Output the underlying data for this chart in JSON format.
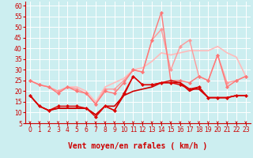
{
  "xlabel": "Vent moyen/en rafales ( km/h )",
  "background_color": "#cceef0",
  "grid_color": "#ffffff",
  "xlim": [
    -0.5,
    23.5
  ],
  "ylim": [
    5,
    62
  ],
  "yticks": [
    5,
    10,
    15,
    20,
    25,
    30,
    35,
    40,
    45,
    50,
    55,
    60
  ],
  "xticks": [
    0,
    1,
    2,
    3,
    4,
    5,
    6,
    7,
    8,
    9,
    10,
    11,
    12,
    13,
    14,
    15,
    16,
    17,
    18,
    19,
    20,
    21,
    22,
    23
  ],
  "series": [
    {
      "x": [
        0,
        1,
        2,
        3,
        4,
        5,
        6,
        7,
        8,
        9,
        10,
        11,
        12,
        13,
        14,
        15,
        16,
        17,
        18,
        19,
        20,
        21,
        22,
        23
      ],
      "y": [
        25,
        23,
        22,
        20,
        22,
        22,
        20,
        15,
        22,
        24,
        26,
        30,
        31,
        34,
        38,
        37,
        38,
        39,
        39,
        39,
        41,
        38,
        36,
        27
      ],
      "color": "#ffbbbb",
      "linewidth": 1.2,
      "marker": null,
      "markersize": 0,
      "zorder": 2
    },
    {
      "x": [
        0,
        1,
        2,
        3,
        4,
        5,
        6,
        7,
        8,
        9,
        10,
        11,
        12,
        13,
        14,
        15,
        16,
        17,
        18,
        19,
        20,
        21,
        22,
        23
      ],
      "y": [
        25,
        23,
        22,
        20,
        22,
        21,
        19,
        14,
        21,
        21,
        25,
        30,
        29,
        44,
        49,
        30,
        41,
        44,
        27,
        25,
        37,
        24,
        25,
        27
      ],
      "color": "#ff9999",
      "linewidth": 1.0,
      "marker": "D",
      "markersize": 2.2,
      "zorder": 3
    },
    {
      "x": [
        0,
        1,
        2,
        3,
        4,
        5,
        6,
        7,
        8,
        9,
        10,
        11,
        12,
        13,
        14,
        15,
        16,
        17,
        18,
        19,
        20,
        21,
        22,
        23
      ],
      "y": [
        25,
        23,
        22,
        19,
        22,
        20,
        19,
        14,
        20,
        19,
        24,
        30,
        29,
        44,
        57,
        25,
        25,
        24,
        27,
        25,
        37,
        22,
        25,
        27
      ],
      "color": "#ff7777",
      "linewidth": 1.0,
      "marker": "D",
      "markersize": 2.2,
      "zorder": 4
    },
    {
      "x": [
        0,
        1,
        2,
        3,
        4,
        5,
        6,
        7,
        8,
        9,
        10,
        11,
        12,
        13,
        14,
        15,
        16,
        17,
        18,
        19,
        20,
        21,
        22,
        23
      ],
      "y": [
        18,
        13,
        11,
        12,
        12,
        12,
        12,
        9,
        13,
        13,
        18,
        20,
        21,
        22,
        24,
        24,
        24,
        21,
        21,
        17,
        17,
        17,
        18,
        18
      ],
      "color": "#cc0000",
      "linewidth": 1.2,
      "marker": null,
      "markersize": 0,
      "zorder": 5
    },
    {
      "x": [
        0,
        1,
        2,
        3,
        4,
        5,
        6,
        7,
        8,
        9,
        10,
        11,
        12,
        13,
        14,
        15,
        16,
        17,
        18,
        19,
        20,
        21,
        22,
        23
      ],
      "y": [
        18,
        13,
        11,
        12,
        12,
        12,
        12,
        9,
        13,
        11,
        18,
        27,
        23,
        23,
        24,
        25,
        24,
        20,
        22,
        17,
        17,
        17,
        18,
        18
      ],
      "color": "#cc0000",
      "linewidth": 1.0,
      "marker": null,
      "markersize": 0,
      "zorder": 6
    },
    {
      "x": [
        0,
        1,
        2,
        3,
        4,
        5,
        6,
        7,
        8,
        9,
        10,
        11,
        12,
        13,
        14,
        15,
        16,
        17,
        18,
        19,
        20,
        21,
        22,
        23
      ],
      "y": [
        18,
        13,
        11,
        13,
        13,
        13,
        12,
        8,
        13,
        11,
        19,
        27,
        23,
        23,
        24,
        24,
        23,
        21,
        22,
        17,
        17,
        17,
        18,
        18
      ],
      "color": "#dd0000",
      "linewidth": 1.0,
      "marker": "D",
      "markersize": 2.2,
      "zorder": 7
    }
  ],
  "arrow_color": "#cc0000",
  "xlabel_color": "#cc0000",
  "xlabel_fontsize": 7,
  "tick_fontsize": 5.5,
  "tick_color": "#cc0000"
}
